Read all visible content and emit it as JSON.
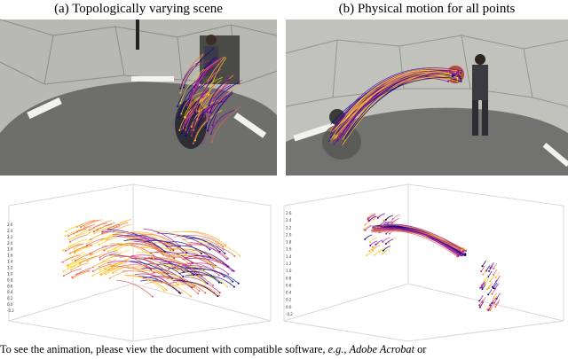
{
  "panels": [
    {
      "caption": "(a) Topologically varying scene",
      "ticks": [
        "2.6",
        "2.4",
        "2.2",
        "2.0",
        "1.8",
        "1.6",
        "1.4",
        "1.2",
        "1.0",
        "0.8",
        "0.6",
        "0.4",
        "0.2",
        "0.0",
        "-0.2"
      ]
    },
    {
      "caption": "(b) Physical motion for all points",
      "ticks": [
        "2.6",
        "2.4",
        "2.2",
        "2.0",
        "1.8",
        "1.6",
        "1.4",
        "1.2",
        "1.0",
        "0.8",
        "0.6",
        "0.4",
        "0.2",
        "0.0",
        "-0.2"
      ]
    }
  ],
  "caption": {
    "parts": [
      "To see the animation, please view the document with compatible software, ",
      "e.g.,",
      " ",
      "Adobe Acrobat",
      " or"
    ]
  }
}
